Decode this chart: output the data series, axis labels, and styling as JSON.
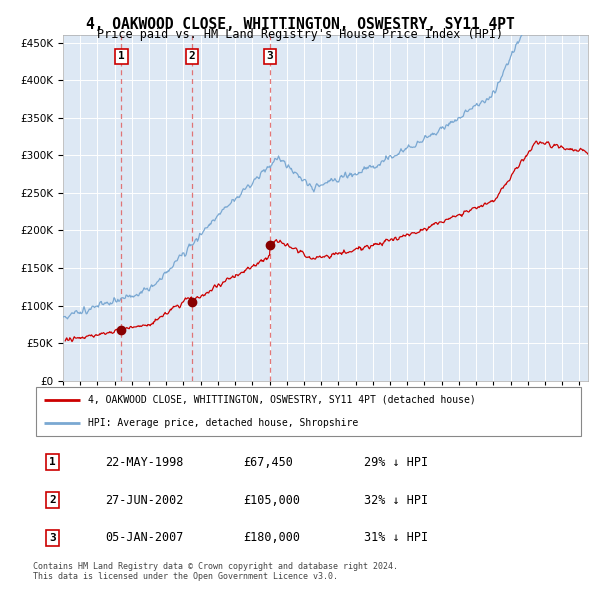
{
  "title": "4, OAKWOOD CLOSE, WHITTINGTON, OSWESTRY, SY11 4PT",
  "subtitle": "Price paid vs. HM Land Registry's House Price Index (HPI)",
  "legend_line1": "4, OAKWOOD CLOSE, WHITTINGTON, OSWESTRY, SY11 4PT (detached house)",
  "legend_line2": "HPI: Average price, detached house, Shropshire",
  "footer": "Contains HM Land Registry data © Crown copyright and database right 2024.\nThis data is licensed under the Open Government Licence v3.0.",
  "transactions": [
    {
      "num": 1,
      "date": "22-MAY-1998",
      "price": 67450,
      "pct": "29% ↓ HPI",
      "year": 1998.39
    },
    {
      "num": 2,
      "date": "27-JUN-2002",
      "price": 105000,
      "pct": "32% ↓ HPI",
      "year": 2002.49
    },
    {
      "num": 3,
      "date": "05-JAN-2007",
      "price": 180000,
      "pct": "31% ↓ HPI",
      "year": 2007.01
    }
  ],
  "hpi_color": "#7aa8d2",
  "price_color": "#cc0000",
  "vline_color": "#e06060",
  "marker_color": "#880000",
  "box_color": "#cc0000",
  "background_chart": "#dde8f4",
  "ylim": [
    0,
    460000
  ],
  "xlim_start": 1995,
  "xlim_end": 2025.5
}
